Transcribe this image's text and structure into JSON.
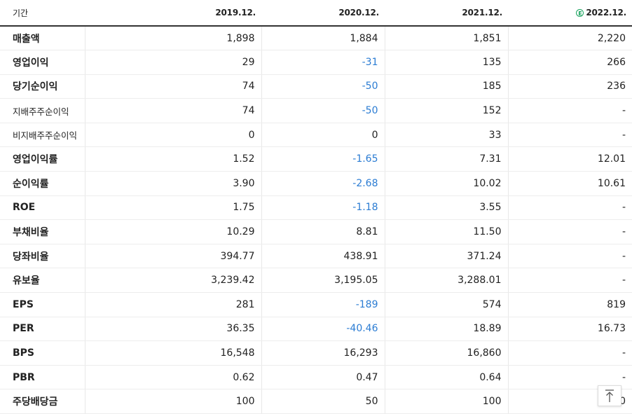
{
  "header": {
    "label": "기간",
    "periods": [
      "2019.12.",
      "2020.12.",
      "2021.12.",
      "2022.12."
    ],
    "estimate_badge": "E",
    "estimate_color": "#1aa35f"
  },
  "rows": [
    {
      "label": "매출액",
      "values": [
        "1,898",
        "1,884",
        "1,851",
        "2,220"
      ]
    },
    {
      "label": "영업이익",
      "values": [
        "29",
        "-31",
        "135",
        "266"
      ]
    },
    {
      "label": "당기순이익",
      "values": [
        "74",
        "-50",
        "185",
        "236"
      ]
    },
    {
      "label": "지배주주순이익",
      "values": [
        "74",
        "-50",
        "152",
        "-"
      ]
    },
    {
      "label": "비지배주주순이익",
      "values": [
        "0",
        "0",
        "33",
        "-"
      ]
    },
    {
      "label": "영업이익률",
      "values": [
        "1.52",
        "-1.65",
        "7.31",
        "12.01"
      ]
    },
    {
      "label": "순이익률",
      "values": [
        "3.90",
        "-2.68",
        "10.02",
        "10.61"
      ]
    },
    {
      "label": "ROE",
      "values": [
        "1.75",
        "-1.18",
        "3.55",
        "-"
      ]
    },
    {
      "label": "부채비율",
      "values": [
        "10.29",
        "8.81",
        "11.50",
        "-"
      ]
    },
    {
      "label": "당좌비율",
      "values": [
        "394.77",
        "438.91",
        "371.24",
        "-"
      ]
    },
    {
      "label": "유보율",
      "values": [
        "3,239.42",
        "3,195.05",
        "3,288.01",
        "-"
      ]
    },
    {
      "label": "EPS",
      "values": [
        "281",
        "-189",
        "574",
        "819"
      ]
    },
    {
      "label": "PER",
      "values": [
        "36.35",
        "-40.46",
        "18.89",
        "16.73"
      ]
    },
    {
      "label": "BPS",
      "values": [
        "16,548",
        "16,293",
        "16,860",
        "-"
      ]
    },
    {
      "label": "PBR",
      "values": [
        "0.62",
        "0.47",
        "0.64",
        "-"
      ]
    },
    {
      "label": "주당배당금",
      "values": [
        "100",
        "50",
        "100",
        "0"
      ]
    }
  ],
  "colors": {
    "negative": "#2b7cd3"
  },
  "scroll_top_icon": "arrow-up-to-top-icon"
}
